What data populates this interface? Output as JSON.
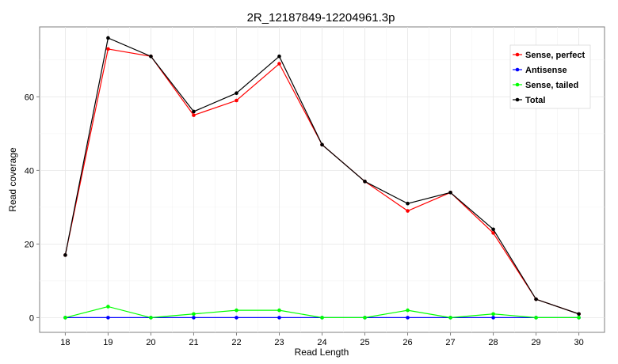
{
  "chart_data": {
    "type": "line",
    "title": "2R_12187849-12204961.3p",
    "xlabel": "Read Length",
    "ylabel": "Read coverage",
    "x": [
      18,
      19,
      20,
      21,
      22,
      23,
      24,
      25,
      26,
      27,
      28,
      29,
      30
    ],
    "xlim": [
      17.4,
      30.6
    ],
    "ylim": [
      -4,
      79
    ],
    "yticks": [
      0,
      20,
      40,
      60
    ],
    "grid": true,
    "legend_position": "top-right",
    "series": [
      {
        "name": "Sense, perfect",
        "color": "#ff0000",
        "values": [
          17,
          73,
          71,
          55,
          59,
          69,
          47,
          37,
          29,
          34,
          23,
          5,
          1
        ]
      },
      {
        "name": "Antisense",
        "color": "#0000ff",
        "values": [
          0,
          0,
          0,
          0,
          0,
          0,
          0,
          0,
          0,
          0,
          0,
          0,
          0
        ]
      },
      {
        "name": "Sense, tailed",
        "color": "#00ff00",
        "values": [
          0,
          3,
          0,
          1,
          2,
          2,
          0,
          0,
          2,
          0,
          1,
          0,
          0
        ]
      },
      {
        "name": "Total",
        "color": "#000000",
        "values": [
          17,
          76,
          71,
          56,
          61,
          71,
          47,
          37,
          31,
          34,
          24,
          5,
          1
        ]
      }
    ]
  }
}
